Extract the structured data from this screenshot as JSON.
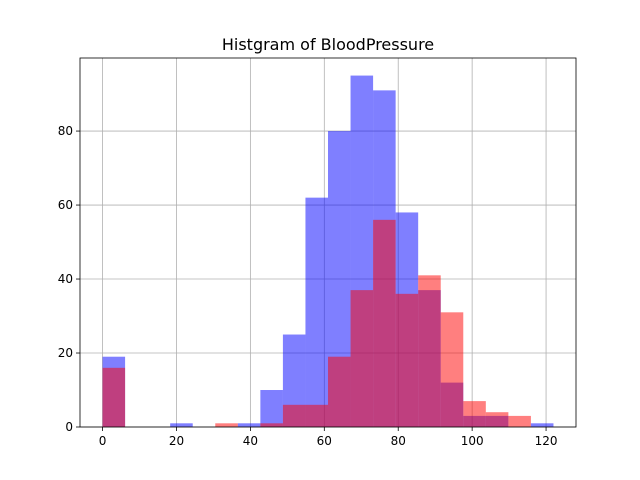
{
  "chart_data": {
    "type": "bar",
    "title": "Histgram of BloodPressure",
    "xlabel": "",
    "ylabel": "",
    "xlim": [
      -6.1,
      128.1
    ],
    "ylim": [
      0,
      99.75
    ],
    "xticks": [
      0,
      20,
      40,
      60,
      80,
      100,
      120
    ],
    "yticks": [
      0,
      20,
      40,
      60,
      80
    ],
    "grid": true,
    "legend": null,
    "series": [
      {
        "color": "#0000ff",
        "alpha": 0.5,
        "bin_start": 0,
        "bin_width": 6.1,
        "counts": [
          19,
          0,
          0,
          1,
          0,
          0,
          1,
          10,
          25,
          62,
          80,
          95,
          91,
          58,
          37,
          12,
          3,
          3,
          0,
          1
        ]
      },
      {
        "color": "#ff0000",
        "alpha": 0.5,
        "bin_start": 0,
        "bin_width": 6.1,
        "counts": [
          16,
          0,
          0,
          0,
          0,
          1,
          0,
          1,
          6,
          6,
          19,
          37,
          56,
          36,
          41,
          31,
          7,
          4,
          3,
          0
        ]
      }
    ]
  }
}
